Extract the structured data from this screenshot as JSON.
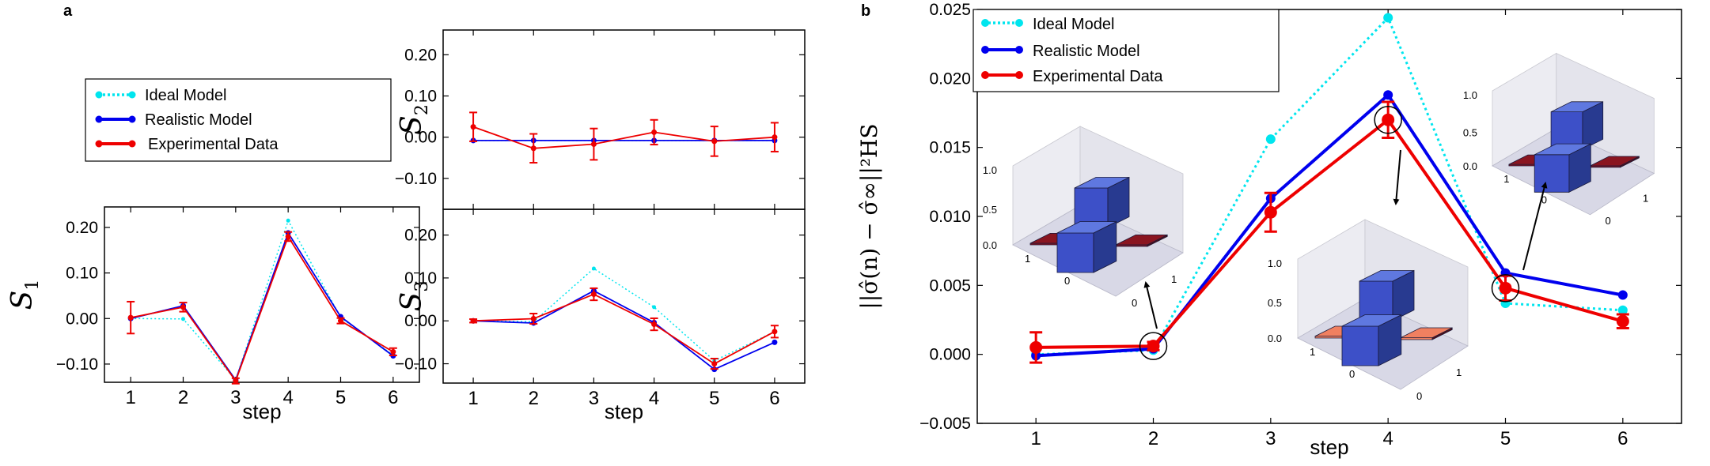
{
  "colors": {
    "ideal": "#00e5ee",
    "realistic": "#0000ee",
    "experimental": "#ee0000",
    "bar_blue": "#3d50c8",
    "bar_red": "#8a1520",
    "bar_salmon": "#f08060"
  },
  "panels": {
    "a_label": "a",
    "b_label": "b"
  },
  "legend_a": {
    "ideal": "Ideal Model",
    "realistic": "Realistic Model",
    "experimental": "Experimental Data"
  },
  "legend_b": {
    "ideal": "Ideal Model",
    "realistic": "Realistic Model",
    "experimental": "Experimental Data"
  },
  "chart_data": [
    {
      "id": "S1",
      "type": "line",
      "ylabel": "S",
      "ylabel_sub": "1",
      "xlabel": "step",
      "x": [
        1,
        2,
        3,
        4,
        5,
        6
      ],
      "xticks": [
        "1",
        "2",
        "3",
        "4",
        "5",
        "6"
      ],
      "yticks": [
        0.2,
        0.1,
        0.0,
        -0.1
      ],
      "ytick_labels": [
        "0.20",
        "0.10",
        "0.00",
        "−0.10"
      ],
      "ylim": [
        -0.14,
        0.245
      ],
      "xlim": [
        0.5,
        6.5
      ],
      "series": [
        {
          "name": "Ideal Model",
          "values": [
            0.0,
            -0.001,
            -0.135,
            0.215,
            0.002,
            -0.08
          ]
        },
        {
          "name": "Realistic Model",
          "values": [
            0.0,
            0.028,
            -0.135,
            0.188,
            0.004,
            -0.082
          ]
        },
        {
          "name": "Experimental Data",
          "values": [
            0.002,
            0.025,
            -0.137,
            0.18,
            -0.005,
            -0.073
          ],
          "errors": [
            0.035,
            0.01,
            0.006,
            0.01,
            0.006,
            0.008
          ]
        }
      ]
    },
    {
      "id": "S2",
      "type": "line",
      "ylabel": "S",
      "ylabel_sub": "2",
      "xlabel": "",
      "x": [
        1,
        2,
        3,
        4,
        5,
        6
      ],
      "xticks": [],
      "yticks": [
        0.2,
        0.1,
        0.0,
        -0.1
      ],
      "ytick_labels": [
        "0.20",
        "0.10",
        "0.00",
        "−0.10"
      ],
      "ylim": [
        -0.175,
        0.26
      ],
      "xlim": [
        0.5,
        6.5
      ],
      "series": [
        {
          "name": "Ideal Model",
          "values": [
            -0.008,
            -0.008,
            -0.008,
            -0.008,
            -0.008,
            -0.008
          ]
        },
        {
          "name": "Realistic Model",
          "values": [
            -0.008,
            -0.008,
            -0.008,
            -0.008,
            -0.008,
            -0.008
          ]
        },
        {
          "name": "Experimental Data",
          "values": [
            0.025,
            -0.027,
            -0.017,
            0.012,
            -0.01,
            0.0
          ],
          "errors": [
            0.035,
            0.035,
            0.038,
            0.03,
            0.036,
            0.035
          ]
        }
      ]
    },
    {
      "id": "S3",
      "type": "line",
      "ylabel": "S",
      "ylabel_sub": "3",
      "xlabel": "step",
      "x": [
        1,
        2,
        3,
        4,
        5,
        6
      ],
      "xticks": [
        "1",
        "2",
        "3",
        "4",
        "5",
        "6"
      ],
      "yticks": [
        0.2,
        0.1,
        0.0,
        -0.1
      ],
      "ytick_labels": [
        "0.20",
        "0.10",
        "0.00",
        "−0.10"
      ],
      "ylim": [
        -0.145,
        0.26
      ],
      "xlim": [
        0.5,
        6.5
      ],
      "series": [
        {
          "name": "Ideal Model",
          "values": [
            0.0,
            -0.002,
            0.122,
            0.032,
            -0.093,
            -0.025
          ]
        },
        {
          "name": "Realistic Model",
          "values": [
            0.0,
            -0.005,
            0.07,
            -0.004,
            -0.113,
            -0.05
          ]
        },
        {
          "name": "Experimental Data",
          "values": [
            0.0,
            0.005,
            0.062,
            -0.008,
            -0.1,
            -0.025
          ],
          "errors": [
            0.004,
            0.012,
            0.014,
            0.014,
            0.012,
            0.014
          ]
        }
      ]
    },
    {
      "id": "b",
      "type": "line",
      "ylabel": "||σ̂(n) − σ̂∞||²HS",
      "xlabel": "step",
      "x": [
        1,
        2,
        3,
        4,
        5,
        6
      ],
      "xticks": [
        "1",
        "2",
        "3",
        "4",
        "5",
        "6"
      ],
      "yticks": [
        0.025,
        0.02,
        0.015,
        0.01,
        0.005,
        0.0,
        -0.005
      ],
      "ytick_labels": [
        "0.025",
        "0.020",
        "0.015",
        "0.010",
        "0.005",
        "0.000",
        "−0.005"
      ],
      "ylim": [
        -0.005,
        0.025
      ],
      "xlim": [
        0.5,
        6.5
      ],
      "series": [
        {
          "name": "Ideal Model",
          "values": [
            0.0,
            0.0003,
            0.0156,
            0.0244,
            0.0037,
            0.0032
          ]
        },
        {
          "name": "Realistic Model",
          "values": [
            -0.0001,
            0.0004,
            0.0113,
            0.0188,
            0.0059,
            0.0043
          ]
        },
        {
          "name": "Experimental Data",
          "values": [
            0.0005,
            0.0006,
            0.0103,
            0.017,
            0.0048,
            0.0024
          ],
          "errors": [
            0.0011,
            0.0003,
            0.0014,
            0.0013,
            0.0009,
            0.0005
          ]
        }
      ],
      "circled_steps": [
        2,
        4,
        5
      ],
      "insets": [
        {
          "id": "inset-1",
          "z_ticks": [
            "1.0",
            "0.5",
            "0.0"
          ],
          "x_ticks": [
            "1",
            "0"
          ],
          "y_ticks": [
            "0",
            "1"
          ],
          "diag": [
            0.5,
            0.5
          ],
          "offdiag": [
            0.1,
            0.1
          ],
          "offdiag_color": "bar_red"
        },
        {
          "id": "inset-2",
          "z_ticks": [
            "1.0",
            "0.5",
            "0.0"
          ],
          "x_ticks": [
            "1",
            "0"
          ],
          "y_ticks": [
            "0",
            "1"
          ],
          "diag": [
            0.5,
            0.5
          ],
          "offdiag": [
            0.12,
            0.12
          ],
          "offdiag_color": "bar_salmon"
        },
        {
          "id": "inset-3",
          "z_ticks": [
            "1.0",
            "0.5",
            "0.0"
          ],
          "x_ticks": [
            "1",
            "0"
          ],
          "y_ticks": [
            "0",
            "1"
          ],
          "diag": [
            0.5,
            0.5
          ],
          "offdiag": [
            0.1,
            0.1
          ],
          "offdiag_color": "bar_red"
        }
      ]
    }
  ]
}
